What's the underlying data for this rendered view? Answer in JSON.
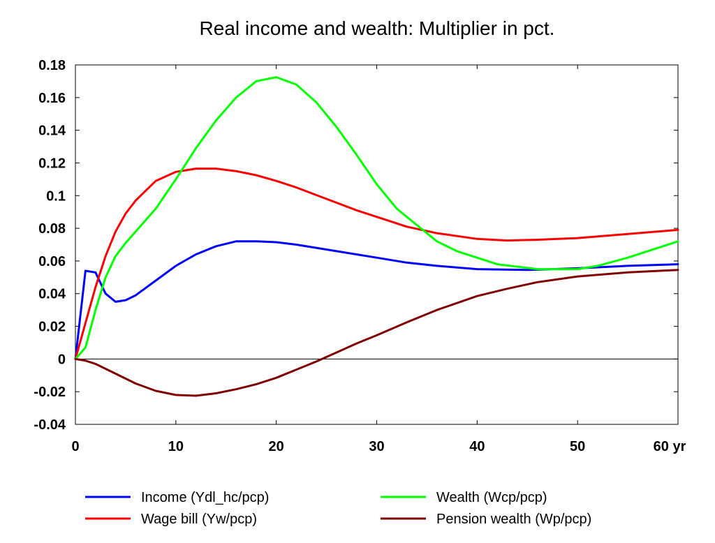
{
  "chart_data": {
    "type": "line",
    "title": "Real income and wealth: Multiplier in pct.",
    "xlim": [
      0,
      60
    ],
    "ylim": [
      -0.04,
      0.18
    ],
    "x_ticks": [
      0,
      10,
      20,
      30,
      40,
      50,
      60
    ],
    "x_tick_labels": [
      "0",
      "10",
      "20",
      "30",
      "40",
      "50",
      "60 yr"
    ],
    "y_ticks": [
      -0.04,
      -0.02,
      0,
      0.02,
      0.04,
      0.06,
      0.08,
      0.1,
      0.12,
      0.14,
      0.16,
      0.18
    ],
    "y_tick_labels": [
      "-0.04",
      "-0.02",
      "0",
      "0.02",
      "0.04",
      "0.06",
      "0.08",
      "0.1",
      "0.12",
      "0.14",
      "0.16",
      "0.18"
    ],
    "zero_line": true,
    "grid": false,
    "legend_position": "bottom",
    "series": [
      {
        "name": "Income (Ydl_hc/pcp)",
        "color": "#0000ff",
        "x": [
          0,
          1,
          2,
          3,
          4,
          5,
          6,
          8,
          10,
          12,
          14,
          16,
          18,
          20,
          22,
          25,
          28,
          30,
          33,
          36,
          40,
          45,
          50,
          55,
          60
        ],
        "y": [
          0,
          0.054,
          0.053,
          0.04,
          0.035,
          0.036,
          0.039,
          0.048,
          0.057,
          0.064,
          0.069,
          0.072,
          0.072,
          0.0715,
          0.07,
          0.067,
          0.064,
          0.062,
          0.059,
          0.057,
          0.055,
          0.0545,
          0.0555,
          0.057,
          0.058
        ]
      },
      {
        "name": "Wage bill (Yw/pcp)",
        "color": "#ff0000",
        "x": [
          0,
          1,
          2,
          3,
          4,
          5,
          6,
          8,
          10,
          12,
          14,
          16,
          18,
          20,
          22,
          25,
          28,
          30,
          33,
          36,
          40,
          43,
          46,
          50,
          55,
          60
        ],
        "y": [
          0,
          0.022,
          0.044,
          0.063,
          0.078,
          0.089,
          0.097,
          0.109,
          0.1145,
          0.1165,
          0.1165,
          0.115,
          0.1125,
          0.109,
          0.105,
          0.098,
          0.091,
          0.087,
          0.081,
          0.077,
          0.0735,
          0.0725,
          0.073,
          0.074,
          0.0765,
          0.079
        ]
      },
      {
        "name": "Wealth (Wcp/pcp)",
        "color": "#00ff00",
        "x": [
          0,
          1,
          2,
          3,
          4,
          5,
          6,
          8,
          10,
          12,
          14,
          16,
          18,
          20,
          22,
          24,
          26,
          28,
          30,
          32,
          34,
          36,
          38,
          40,
          42,
          44,
          46,
          48,
          50,
          52,
          55,
          58,
          60
        ],
        "y": [
          0,
          0.007,
          0.03,
          0.05,
          0.063,
          0.071,
          0.078,
          0.092,
          0.11,
          0.129,
          0.146,
          0.16,
          0.17,
          0.1725,
          0.168,
          0.157,
          0.142,
          0.125,
          0.107,
          0.092,
          0.082,
          0.072,
          0.066,
          0.062,
          0.058,
          0.0565,
          0.055,
          0.055,
          0.055,
          0.057,
          0.062,
          0.068,
          0.072
        ]
      },
      {
        "name": "Pension wealth (Wp/pcp)",
        "color": "#800000",
        "x": [
          0,
          1,
          2,
          4,
          6,
          8,
          10,
          12,
          14,
          16,
          18,
          20,
          22,
          24,
          26,
          28,
          30,
          33,
          36,
          40,
          43,
          46,
          50,
          55,
          60
        ],
        "y": [
          0,
          -0.001,
          -0.003,
          -0.009,
          -0.015,
          -0.0195,
          -0.022,
          -0.0225,
          -0.021,
          -0.0185,
          -0.0155,
          -0.0115,
          -0.0065,
          -0.0015,
          0.004,
          0.0095,
          0.0145,
          0.0225,
          0.03,
          0.0385,
          0.043,
          0.047,
          0.0505,
          0.053,
          0.0545
        ]
      }
    ]
  }
}
